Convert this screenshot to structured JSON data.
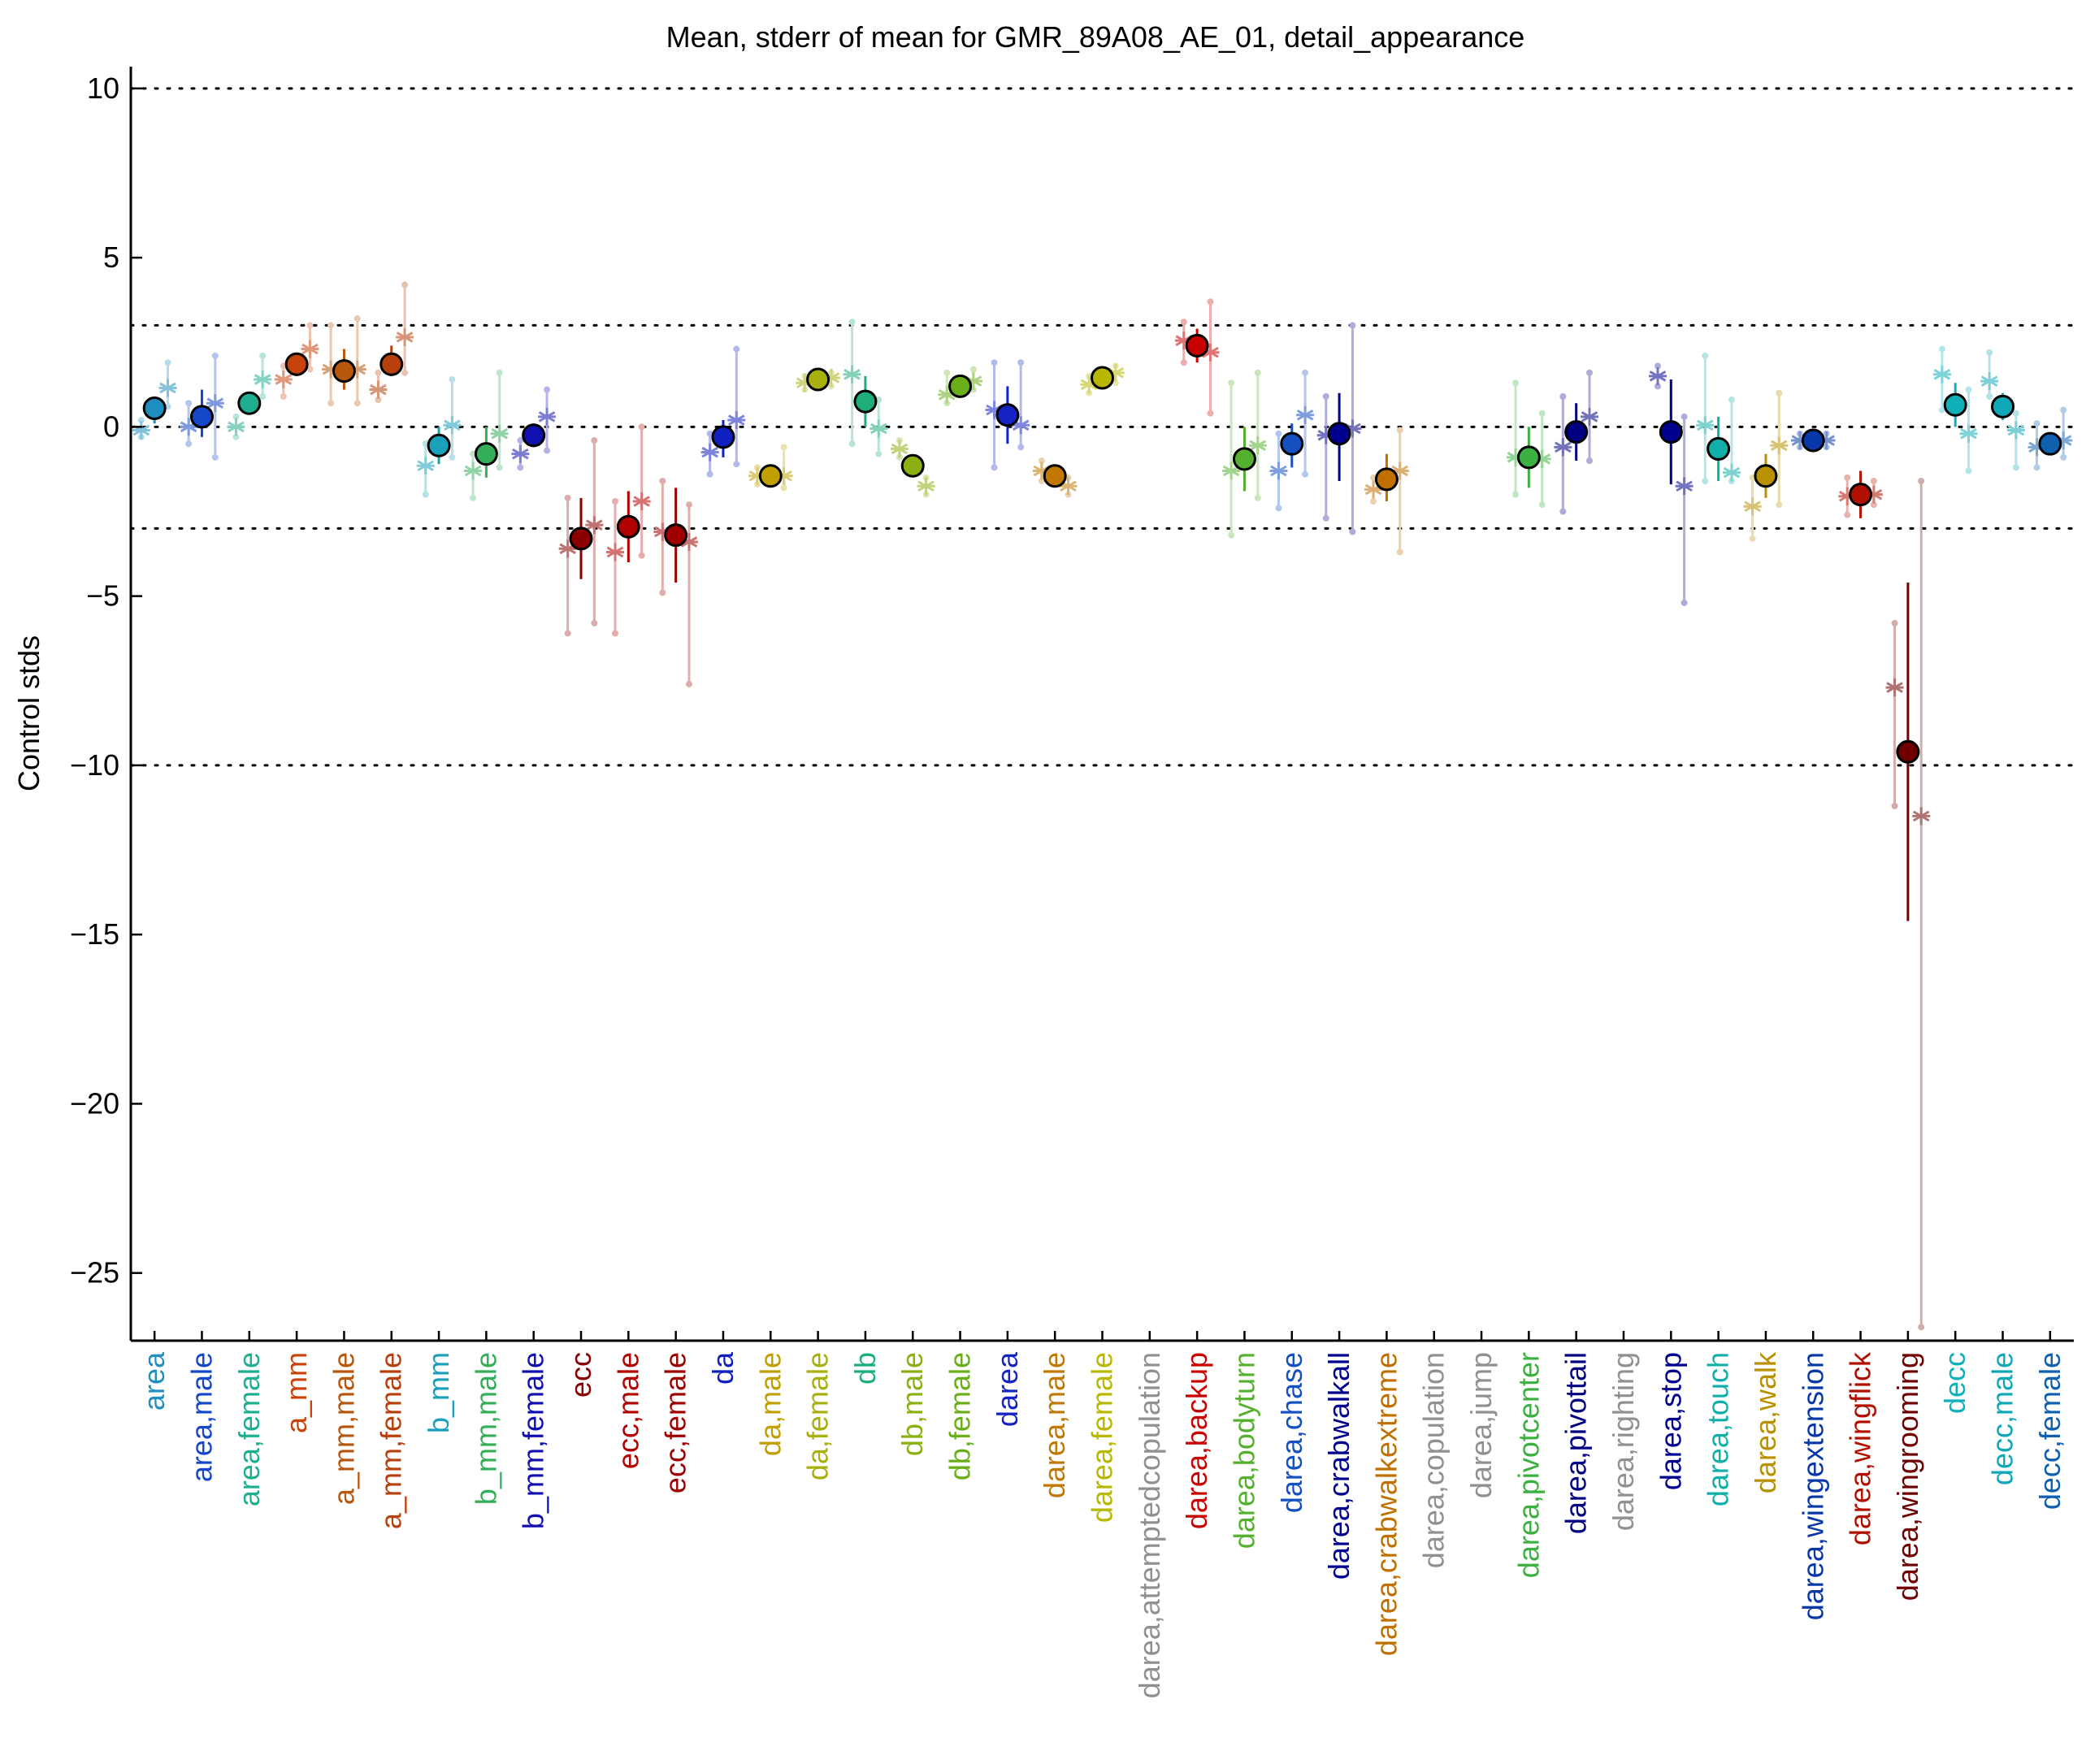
{
  "chart_data": {
    "type": "scatter",
    "title": "Mean, stderr of mean for GMR_89A08_AE_01, detail_appearance",
    "ylabel": "Control stds",
    "xlabel": "",
    "ylim": [
      -27,
      10.5
    ],
    "yticks": [
      10,
      5,
      0,
      -5,
      -10,
      -15,
      -20,
      -25
    ],
    "ytick_labels": [
      "10",
      "5",
      "0",
      "−5",
      "−10",
      "−15",
      "−20",
      "−25"
    ],
    "reference_lines": [
      10,
      3,
      0,
      -3,
      -10
    ],
    "grid": false,
    "categories": [
      "area",
      "area,male",
      "area,female",
      "a_mm",
      "a_mm,male",
      "a_mm,female",
      "b_mm",
      "b_mm,male",
      "b_mm,female",
      "ecc",
      "ecc,male",
      "ecc,female",
      "da",
      "da,male",
      "da,female",
      "db",
      "db,male",
      "db,female",
      "darea",
      "darea,male",
      "darea,female",
      "darea,attemptedcopulation",
      "darea,backup",
      "darea,bodyturn",
      "darea,chase",
      "darea,crabwalkall",
      "darea,crabwalkextreme",
      "darea,copulation",
      "darea,jump",
      "darea,pivotcenter",
      "darea,pivottail",
      "darea,righting",
      "darea,stop",
      "darea,touch",
      "darea,walk",
      "darea,wingextension",
      "darea,wingflick",
      "darea,wingrooming",
      "decc",
      "decc,male",
      "decc,female"
    ],
    "colors": [
      "#1f8fbf",
      "#1448c8",
      "#1fae8f",
      "#c8430b",
      "#b8560c",
      "#b8400c",
      "#1aa0bb",
      "#34ae58",
      "#1010b0",
      "#8a0000",
      "#b00000",
      "#9e0000",
      "#1020c0",
      "#c0a000",
      "#a8b010",
      "#1eae7a",
      "#8ab012",
      "#6aae1a",
      "#1424c4",
      "#c07800",
      "#b8b800",
      "#909090",
      "#c80000",
      "#56b030",
      "#1450c0",
      "#000090",
      "#c07000",
      "#909090",
      "#909090",
      "#3cb040",
      "#000080",
      "#909090",
      "#000090",
      "#10b0a8",
      "#b89000",
      "#0838a8",
      "#b01000",
      "#700000",
      "#10b0b8",
      "#10a8b8",
      "#1060b0"
    ],
    "series": [
      {
        "name": "mean",
        "marker": "circle",
        "values": [
          0.55,
          0.3,
          0.7,
          1.85,
          1.65,
          1.85,
          -0.55,
          -0.8,
          -0.25,
          -3.3,
          -2.95,
          -3.2,
          -0.3,
          -1.45,
          1.4,
          0.75,
          -1.15,
          1.2,
          0.35,
          -1.45,
          1.45,
          null,
          2.4,
          -0.95,
          -0.5,
          -0.2,
          -1.55,
          null,
          null,
          -0.9,
          -0.15,
          null,
          -0.15,
          -0.65,
          -1.45,
          -0.4,
          -2.0,
          -9.6,
          0.65,
          0.6,
          -0.5
        ]
      },
      {
        "name": "sem_low",
        "values": [
          0.1,
          -0.3,
          0.5,
          1.5,
          1.1,
          1.5,
          -1.1,
          -1.5,
          -0.6,
          -4.5,
          -4.0,
          -4.6,
          -0.9,
          -1.7,
          1.2,
          0.0,
          -1.3,
          1.0,
          -0.5,
          -1.7,
          1.2,
          null,
          1.9,
          -1.9,
          -1.2,
          -1.6,
          -2.2,
          null,
          null,
          -1.8,
          -1.0,
          null,
          -1.7,
          -1.6,
          -2.1,
          -0.6,
          -2.7,
          -14.6,
          0.0,
          0.2,
          -0.8
        ]
      },
      {
        "name": "sem_high",
        "values": [
          0.9,
          1.1,
          0.9,
          2.2,
          2.3,
          2.4,
          0.0,
          0.0,
          0.1,
          -2.1,
          -1.9,
          -1.8,
          0.2,
          -1.2,
          1.6,
          1.5,
          -1.0,
          1.4,
          1.2,
          -1.2,
          1.7,
          null,
          2.9,
          0.0,
          0.1,
          1.0,
          -0.8,
          null,
          null,
          0.0,
          0.7,
          null,
          1.4,
          0.3,
          -0.8,
          -0.2,
          -1.3,
          -4.6,
          1.3,
          1.0,
          -0.2
        ]
      },
      {
        "name": "group_a",
        "marker": "asterisk",
        "values": [
          -0.1,
          0.0,
          0.0,
          1.4,
          1.7,
          1.1,
          -1.15,
          -1.3,
          -0.8,
          -3.6,
          -3.7,
          -3.1,
          -0.75,
          -1.45,
          1.3,
          1.55,
          -0.65,
          0.95,
          0.5,
          -1.3,
          1.25,
          null,
          2.55,
          -1.3,
          -1.3,
          -0.25,
          -1.85,
          null,
          null,
          -0.9,
          -0.6,
          null,
          1.5,
          0.05,
          -2.35,
          -0.4,
          -2.05,
          -7.7,
          1.55,
          1.35,
          -0.6
        ]
      },
      {
        "name": "group_b",
        "marker": "asterisk",
        "values": [
          1.15,
          0.7,
          1.4,
          2.3,
          1.7,
          2.65,
          0.05,
          -0.2,
          0.3,
          -2.9,
          -2.2,
          -3.4,
          0.2,
          -1.45,
          1.45,
          -0.05,
          -1.75,
          1.35,
          0.05,
          -1.75,
          1.6,
          null,
          2.2,
          -0.55,
          0.35,
          -0.05,
          -1.3,
          null,
          null,
          -0.95,
          0.3,
          null,
          -1.75,
          -1.35,
          -0.55,
          -0.4,
          -2.0,
          -11.5,
          -0.2,
          -0.1,
          -0.4
        ]
      },
      {
        "name": "range_a_low",
        "values": [
          -0.3,
          -0.5,
          -0.3,
          0.9,
          0.7,
          0.8,
          -2.0,
          -2.1,
          -1.2,
          -6.1,
          -6.1,
          -4.9,
          -1.4,
          -1.7,
          1.1,
          -0.5,
          -0.9,
          0.7,
          -1.2,
          -1.6,
          1.0,
          null,
          1.9,
          -3.2,
          -2.4,
          -2.7,
          -2.2,
          null,
          null,
          -2.0,
          -2.5,
          null,
          1.2,
          -1.6,
          -3.3,
          -0.6,
          -2.6,
          -11.2,
          0.5,
          0.9,
          -1.2
        ]
      },
      {
        "name": "range_a_high",
        "values": [
          0.2,
          0.7,
          0.3,
          1.8,
          3.0,
          1.6,
          -0.5,
          -0.8,
          -0.4,
          -2.1,
          -2.2,
          -1.6,
          -0.2,
          -1.2,
          1.5,
          3.1,
          -0.4,
          1.6,
          1.9,
          -1.0,
          1.5,
          null,
          3.1,
          1.3,
          -0.2,
          0.9,
          -1.5,
          null,
          null,
          1.3,
          0.9,
          null,
          1.8,
          2.1,
          -1.5,
          -0.2,
          -1.5,
          -5.8,
          2.3,
          2.2,
          0.1
        ]
      },
      {
        "name": "range_b_low",
        "values": [
          0.6,
          -0.9,
          0.9,
          1.7,
          0.7,
          1.6,
          -0.9,
          -1.2,
          -0.7,
          -5.8,
          -3.8,
          -7.6,
          -1.1,
          -1.8,
          1.2,
          -0.8,
          -2.0,
          1.1,
          -0.6,
          -2.0,
          1.3,
          null,
          0.4,
          -2.1,
          -1.4,
          -3.1,
          -3.7,
          null,
          null,
          -2.3,
          -1.0,
          null,
          -5.2,
          -1.6,
          -2.3,
          -0.6,
          -2.3,
          -26.6,
          -1.3,
          -1.2,
          -0.9
        ]
      },
      {
        "name": "range_b_high",
        "values": [
          1.9,
          2.1,
          2.1,
          3.0,
          3.2,
          4.2,
          1.4,
          1.6,
          1.1,
          -0.4,
          0.0,
          -2.3,
          2.3,
          -0.6,
          1.6,
          0.8,
          -1.5,
          1.7,
          1.9,
          -1.5,
          1.8,
          null,
          3.7,
          1.6,
          1.6,
          3.0,
          -0.1,
          null,
          null,
          0.4,
          1.6,
          null,
          0.3,
          0.8,
          1.0,
          -0.2,
          -1.6,
          -1.6,
          1.1,
          0.4,
          0.5
        ]
      }
    ]
  }
}
